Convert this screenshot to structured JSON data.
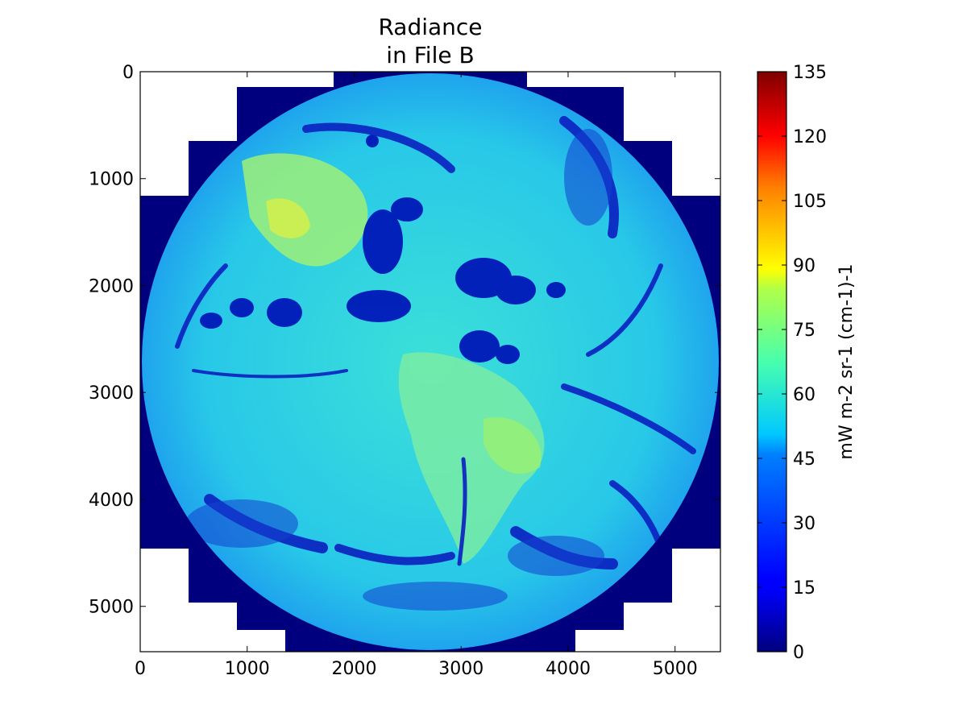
{
  "chart_data": {
    "type": "heatmap",
    "title_line1": "Radiance",
    "title_line2": "in File B",
    "xlabel": "",
    "ylabel": "",
    "x_ticks": [
      "0",
      "1000",
      "2000",
      "3000",
      "4000",
      "5000"
    ],
    "y_ticks": [
      "0",
      "1000",
      "2000",
      "3000",
      "4000",
      "5000"
    ],
    "xlim": [
      0,
      5424
    ],
    "ylim": [
      5424,
      0
    ],
    "colorbar": {
      "label": "mW m-2 sr-1 (cm-1)-1",
      "range": [
        0,
        135
      ],
      "ticks": [
        "0",
        "15",
        "30",
        "45",
        "60",
        "75",
        "90",
        "105",
        "120",
        "135"
      ],
      "colormap": "jet"
    },
    "image_description_values": {
      "background_fill_value": 0,
      "typical_ocean_value": 50,
      "dry_land_value": 75,
      "cold_cloud_value": 5
    },
    "colors": {
      "fill": "#00007f",
      "ocean": "#20d0e8",
      "land": "#a8f060",
      "cloud": "#0010b0"
    }
  }
}
